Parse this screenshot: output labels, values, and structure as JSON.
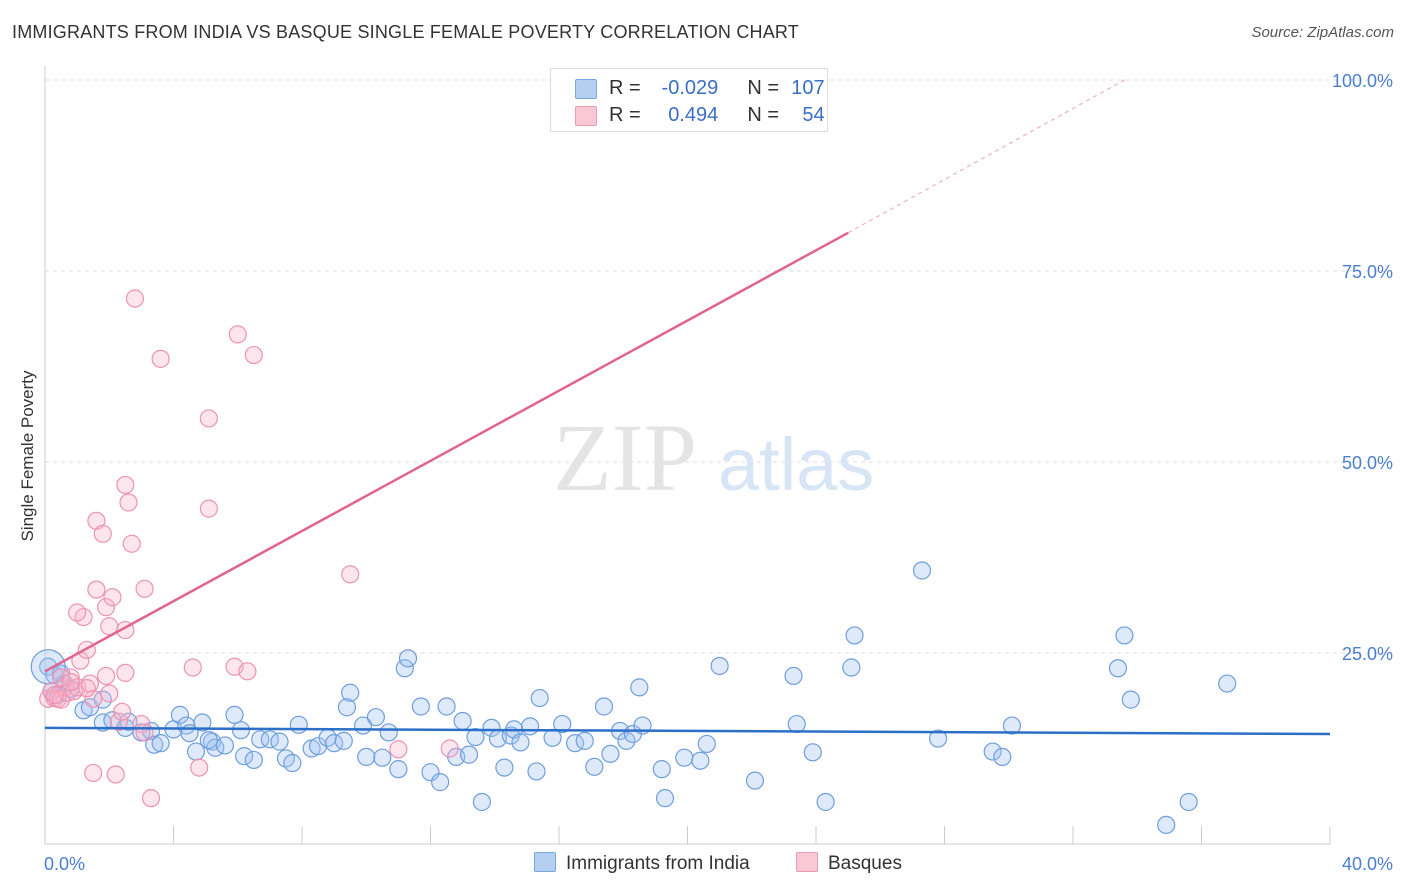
{
  "title": "IMMIGRANTS FROM INDIA VS BASQUE SINGLE FEMALE POVERTY CORRELATION CHART",
  "source": "Source: ZipAtlas.com",
  "watermark": {
    "zip": "ZIP",
    "atlas": "atlas"
  },
  "legend": {
    "r_label": "R =",
    "n_label": "N =",
    "rows": [
      {
        "r": "-0.029",
        "n": "107",
        "fill": "#b5cff1",
        "stroke": "#7aa6e0"
      },
      {
        "r": "0.494",
        "n": "54",
        "fill": "#f9c7d6",
        "stroke": "#ee9ab5"
      }
    ]
  },
  "bottom_legend": [
    "Immigrants from India",
    "Basques"
  ],
  "chart_data": {
    "type": "scatter",
    "title": "IMMIGRANTS FROM INDIA VS BASQUE SINGLE FEMALE POVERTY CORRELATION CHART",
    "xlabel": "",
    "ylabel": "Single Female Poverty",
    "xlim": [
      0,
      40
    ],
    "ylim": [
      0,
      100
    ],
    "x_tick_labels": [
      "0.0%",
      "40.0%"
    ],
    "y_tick_labels": [
      "25.0%",
      "50.0%",
      "75.0%",
      "100.0%"
    ],
    "y_ticks": [
      25,
      50,
      75,
      100
    ],
    "grid": true,
    "legend_position": "top-center",
    "colors": {
      "india_fill": "rgba(160,195,240,0.35)",
      "india_stroke": "#6f9edd",
      "india_line": "#2c6fc9",
      "basque_fill": "rgba(248,180,202,0.35)",
      "basque_stroke": "#ec93b1",
      "basque_line": "#e0648f",
      "tick_label": "#4a7fcf"
    },
    "series": [
      {
        "name": "Immigrants from India",
        "trend": {
          "x0": 0,
          "y0": 15.2,
          "x1": 40,
          "y1": 14.4
        },
        "points": [
          [
            0.1,
            23.2
          ],
          [
            0.3,
            22.1
          ],
          [
            0.5,
            22.3
          ],
          [
            0.6,
            21.0
          ],
          [
            0.8,
            20.3
          ],
          [
            1.2,
            17.5
          ],
          [
            1.4,
            17.9
          ],
          [
            1.8,
            18.9
          ],
          [
            1.8,
            15.9
          ],
          [
            2.1,
            16.2
          ],
          [
            2.5,
            15.2
          ],
          [
            2.6,
            16.0
          ],
          [
            3.0,
            14.6
          ],
          [
            3.3,
            14.8
          ],
          [
            3.4,
            13.0
          ],
          [
            3.6,
            13.2
          ],
          [
            4.0,
            15.0
          ],
          [
            4.2,
            16.9
          ],
          [
            4.4,
            15.5
          ],
          [
            4.5,
            14.5
          ],
          [
            4.7,
            12.1
          ],
          [
            4.9,
            15.9
          ],
          [
            5.2,
            13.4
          ],
          [
            5.3,
            12.6
          ],
          [
            5.6,
            12.9
          ],
          [
            5.9,
            16.9
          ],
          [
            6.1,
            14.9
          ],
          [
            6.2,
            11.5
          ],
          [
            6.5,
            11.0
          ],
          [
            6.7,
            13.7
          ],
          [
            7.0,
            13.7
          ],
          [
            7.3,
            13.4
          ],
          [
            7.5,
            11.2
          ],
          [
            7.7,
            10.6
          ],
          [
            7.9,
            15.6
          ],
          [
            8.3,
            12.5
          ],
          [
            8.5,
            12.8
          ],
          [
            8.8,
            13.9
          ],
          [
            9.0,
            13.2
          ],
          [
            9.3,
            13.5
          ],
          [
            9.4,
            17.9
          ],
          [
            9.5,
            19.8
          ],
          [
            9.9,
            15.5
          ],
          [
            10.0,
            11.4
          ],
          [
            10.3,
            16.6
          ],
          [
            10.5,
            11.3
          ],
          [
            10.7,
            14.6
          ],
          [
            11.0,
            9.8
          ],
          [
            11.2,
            23.0
          ],
          [
            11.3,
            24.3
          ],
          [
            11.7,
            18.0
          ],
          [
            12.0,
            9.4
          ],
          [
            12.3,
            8.1
          ],
          [
            12.5,
            18.0
          ],
          [
            12.8,
            11.4
          ],
          [
            13.0,
            16.1
          ],
          [
            13.2,
            11.7
          ],
          [
            13.4,
            14.0
          ],
          [
            13.6,
            5.5
          ],
          [
            13.9,
            15.2
          ],
          [
            14.1,
            13.8
          ],
          [
            14.3,
            10.0
          ],
          [
            14.5,
            14.2
          ],
          [
            14.6,
            15.0
          ],
          [
            14.8,
            13.3
          ],
          [
            15.1,
            15.4
          ],
          [
            15.3,
            9.5
          ],
          [
            15.4,
            19.1
          ],
          [
            15.8,
            13.9
          ],
          [
            16.1,
            15.7
          ],
          [
            16.5,
            13.2
          ],
          [
            16.8,
            13.5
          ],
          [
            17.1,
            10.1
          ],
          [
            17.4,
            18.0
          ],
          [
            17.6,
            11.8
          ],
          [
            17.9,
            14.8
          ],
          [
            18.1,
            13.5
          ],
          [
            18.3,
            14.4
          ],
          [
            18.5,
            20.5
          ],
          [
            18.6,
            15.5
          ],
          [
            19.2,
            9.8
          ],
          [
            19.3,
            6.0
          ],
          [
            19.9,
            11.3
          ],
          [
            20.4,
            10.9
          ],
          [
            20.6,
            13.1
          ],
          [
            21.0,
            23.3
          ],
          [
            22.1,
            8.3
          ],
          [
            23.3,
            22.0
          ],
          [
            23.4,
            15.7
          ],
          [
            23.9,
            12.0
          ],
          [
            24.3,
            5.5
          ],
          [
            25.1,
            23.1
          ],
          [
            25.2,
            27.3
          ],
          [
            27.3,
            35.8
          ],
          [
            27.8,
            13.8
          ],
          [
            29.5,
            12.1
          ],
          [
            29.8,
            11.4
          ],
          [
            30.1,
            15.5
          ],
          [
            33.4,
            23.0
          ],
          [
            33.6,
            27.3
          ],
          [
            33.8,
            18.9
          ],
          [
            34.9,
            2.5
          ],
          [
            35.6,
            5.5
          ],
          [
            36.8,
            21.0
          ],
          [
            0.2,
            20.0
          ],
          [
            0.4,
            19.5
          ],
          [
            5.1,
            13.6
          ]
        ]
      },
      {
        "name": "Basques",
        "trend": {
          "x0": 0,
          "y0": 22.6,
          "x1": 25.0,
          "y1": 80.0,
          "dash_x1": 33.6,
          "dash_y1": 100.0
        },
        "points": [
          [
            0.1,
            19.0
          ],
          [
            0.2,
            20.0
          ],
          [
            0.3,
            19.1
          ],
          [
            0.4,
            19.0
          ],
          [
            0.5,
            18.9
          ],
          [
            0.6,
            20.5
          ],
          [
            0.7,
            19.8
          ],
          [
            0.8,
            21.8
          ],
          [
            0.9,
            20.0
          ],
          [
            1.0,
            20.5
          ],
          [
            1.1,
            24.0
          ],
          [
            1.2,
            29.7
          ],
          [
            1.3,
            25.4
          ],
          [
            1.4,
            21.0
          ],
          [
            1.5,
            19.0
          ],
          [
            1.6,
            33.3
          ],
          [
            1.6,
            42.3
          ],
          [
            1.8,
            40.6
          ],
          [
            1.9,
            31.0
          ],
          [
            1.9,
            22.0
          ],
          [
            2.0,
            28.5
          ],
          [
            2.1,
            32.3
          ],
          [
            2.2,
            9.1
          ],
          [
            2.3,
            16.0
          ],
          [
            2.4,
            17.3
          ],
          [
            2.5,
            22.4
          ],
          [
            2.5,
            28.0
          ],
          [
            2.5,
            47.0
          ],
          [
            2.6,
            44.7
          ],
          [
            2.7,
            39.3
          ],
          [
            2.8,
            71.4
          ],
          [
            3.0,
            15.7
          ],
          [
            3.1,
            14.6
          ],
          [
            3.1,
            33.4
          ],
          [
            3.3,
            6.0
          ],
          [
            3.6,
            63.5
          ],
          [
            4.6,
            23.1
          ],
          [
            4.8,
            10.0
          ],
          [
            5.1,
            55.7
          ],
          [
            5.1,
            43.9
          ],
          [
            5.9,
            23.2
          ],
          [
            6.0,
            66.7
          ],
          [
            6.3,
            22.6
          ],
          [
            6.5,
            64.0
          ],
          [
            9.5,
            35.3
          ],
          [
            11.0,
            12.4
          ],
          [
            12.6,
            12.5
          ],
          [
            1.0,
            30.3
          ],
          [
            0.5,
            21.8
          ],
          [
            1.5,
            9.3
          ],
          [
            0.8,
            21.2
          ],
          [
            1.3,
            20.4
          ],
          [
            2.0,
            19.7
          ],
          [
            0.3,
            19.5
          ]
        ]
      }
    ]
  }
}
